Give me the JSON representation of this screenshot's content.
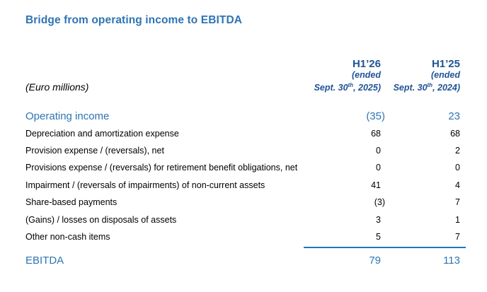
{
  "title": "Bridge from operating income to EBITDA",
  "unit_label": "(Euro millions)",
  "columns": [
    {
      "period": "H1’26",
      "ended": "(ended",
      "date_prefix": "Sept. 30",
      "date_sup": "th",
      "date_suffix": ", 2025)"
    },
    {
      "period": "H1’25",
      "ended": "(ended",
      "date_prefix": "Sept. 30",
      "date_sup": "th",
      "date_suffix": ", 2024)"
    }
  ],
  "rows": [
    {
      "label": "Operating income",
      "h126": "(35)",
      "h125": "23"
    },
    {
      "label": "Depreciation and amortization expense",
      "h126": "68",
      "h125": "68"
    },
    {
      "label": "Provision expense / (reversals), net",
      "h126": "0",
      "h125": "2"
    },
    {
      "label": "Provisions expense / (reversals) for retirement benefit obligations, net",
      "h126": "0",
      "h125": "0"
    },
    {
      "label": "Impairment / (reversals of impairments) of non-current assets",
      "h126": "41",
      "h125": "4"
    },
    {
      "label": "Share-based payments",
      "h126": "(3)",
      "h125": "7"
    },
    {
      "label": "(Gains) / losses on disposals of assets",
      "h126": "3",
      "h125": "1"
    },
    {
      "label": "Other non-cash items",
      "h126": "5",
      "h125": "7"
    }
  ],
  "total": {
    "label": "EBITDA",
    "h126": "79",
    "h125": "113"
  },
  "colors": {
    "title_blue": "#2E74B5",
    "header_blue": "#1F5394",
    "accent_blue": "#2E74B5",
    "rule_blue": "#2077B8",
    "body_text": "#000000"
  }
}
